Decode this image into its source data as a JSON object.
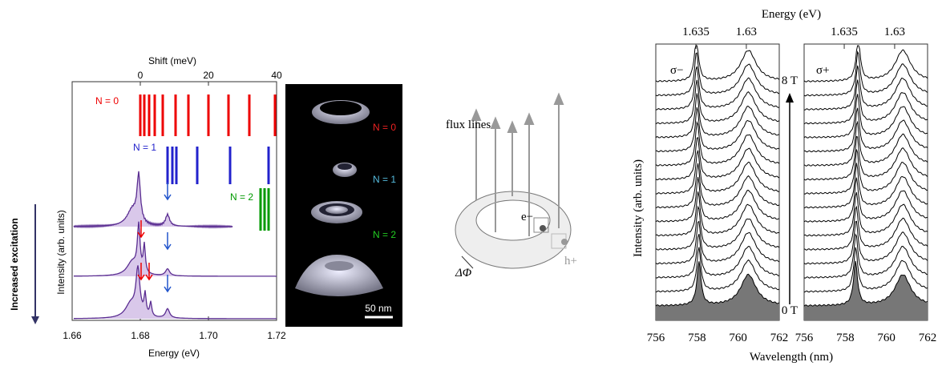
{
  "left_figure": {
    "y_side_label": "Increased excitation",
    "x_top_title": "Shift (meV)",
    "x_top_ticks": [
      "0",
      "20",
      "40"
    ],
    "series_labels": [
      "N = 0",
      "N = 1",
      "N = 2"
    ],
    "y_title": "Intensity (arb. units)",
    "x_title": "Energy (eV)",
    "x_ticks": [
      "1.66",
      "1.68",
      "1.70",
      "1.72"
    ]
  },
  "ring_images": {
    "labels": [
      "N = 0",
      "N = 1",
      "N = 2"
    ],
    "scale_bar": "50 nm"
  },
  "diagram": {
    "flux": "flux lines",
    "electron": "e−",
    "hole": "h+",
    "phase": "ΔΦ"
  },
  "right_figure": {
    "top_title": "Energy (eV)",
    "top_ticks": [
      "1.635",
      "1.63",
      "1.635",
      "1.63"
    ],
    "left_label": "σ−",
    "right_label": "σ+",
    "field_max": "8 T",
    "field_min": "0 T",
    "y_title": "Intensity (arb. units)",
    "x_title": "Wavelength (nm)",
    "x_ticks": [
      "756",
      "758",
      "760",
      "762",
      "756",
      "758",
      "760",
      "762"
    ]
  }
}
